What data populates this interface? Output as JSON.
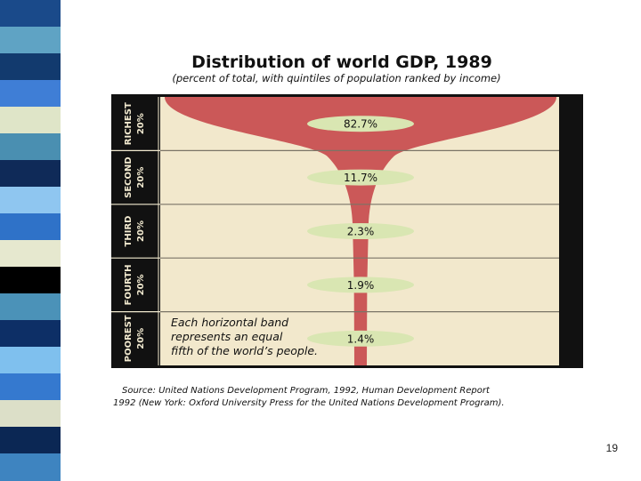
{
  "page_number": "19",
  "left_stripe_colors": [
    "#1a4a8a",
    "#5fa3c4",
    "#123a6e",
    "#3f7ed6",
    "#dfe5c8",
    "#4a8fb1",
    "#0f2a58",
    "#8fc6f0",
    "#2f72c8",
    "#e6e8cf",
    "#000000",
    "#4b92b8",
    "#0d2f66",
    "#7fc0ee",
    "#3579cf",
    "#dcdfc8",
    "#0b2754",
    "#3e84c0"
  ],
  "chart_data": {
    "type": "funnel",
    "title": "Distribution of world GDP, 1989",
    "subtitle": "(percent of total, with quintiles of population ranked by income)",
    "categories": [
      "RICHEST 20%",
      "SECOND 20%",
      "THIRD 20%",
      "FOURTH 20%",
      "POOREST 20%"
    ],
    "category_lines": [
      [
        "RICHEST",
        "20%"
      ],
      [
        "SECOND",
        "20%"
      ],
      [
        "THIRD",
        "20%"
      ],
      [
        "FOURTH",
        "20%"
      ],
      [
        "POOREST",
        "20%"
      ]
    ],
    "values": [
      82.7,
      11.7,
      2.3,
      1.9,
      1.4
    ],
    "value_labels": [
      "82.7%",
      "11.7%",
      "2.3%",
      "1.9%",
      "1.4%"
    ],
    "annotation": [
      "Each horizontal band",
      "represents an equal",
      "fifth of the world’s people."
    ],
    "source": [
      "Source: United Nations Development Program, 1992, Human Development Report",
      "1992 (New York: Oxford University Press for the United Nations Development Program)."
    ],
    "colors": {
      "funnel": "#cb5858",
      "background": "#f2e8cc",
      "label_pill": "#d9e6b2",
      "frame": "#111111"
    }
  }
}
